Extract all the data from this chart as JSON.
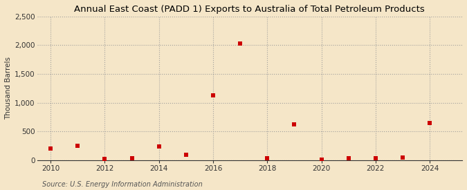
{
  "title": "Annual East Coast (PADD 1) Exports to Australia of Total Petroleum Products",
  "ylabel": "Thousand Barrels",
  "source": "Source: U.S. Energy Information Administration",
  "background_color": "#f5e6c8",
  "plot_bg_color": "#f5e6c8",
  "years": [
    2010,
    2011,
    2012,
    2013,
    2014,
    2015,
    2016,
    2017,
    2018,
    2019,
    2020,
    2021,
    2022,
    2023,
    2024
  ],
  "values": [
    200,
    252,
    20,
    30,
    242,
    100,
    1130,
    2030,
    30,
    628,
    15,
    40,
    40,
    50,
    648
  ],
  "marker_color": "#cc0000",
  "marker_size": 18,
  "ylim": [
    0,
    2500
  ],
  "yticks": [
    0,
    500,
    1000,
    1500,
    2000,
    2500
  ],
  "ytick_labels": [
    "0",
    "500",
    "1,000",
    "1,500",
    "2,000",
    "2,500"
  ],
  "xlim": [
    2009.5,
    2025.2
  ],
  "xticks": [
    2010,
    2012,
    2014,
    2016,
    2018,
    2020,
    2022,
    2024
  ],
  "title_fontsize": 9.5,
  "axis_fontsize": 7.5,
  "source_fontsize": 7,
  "grid_color": "#999999",
  "grid_style": ":",
  "grid_alpha": 0.9,
  "grid_linewidth": 0.8
}
